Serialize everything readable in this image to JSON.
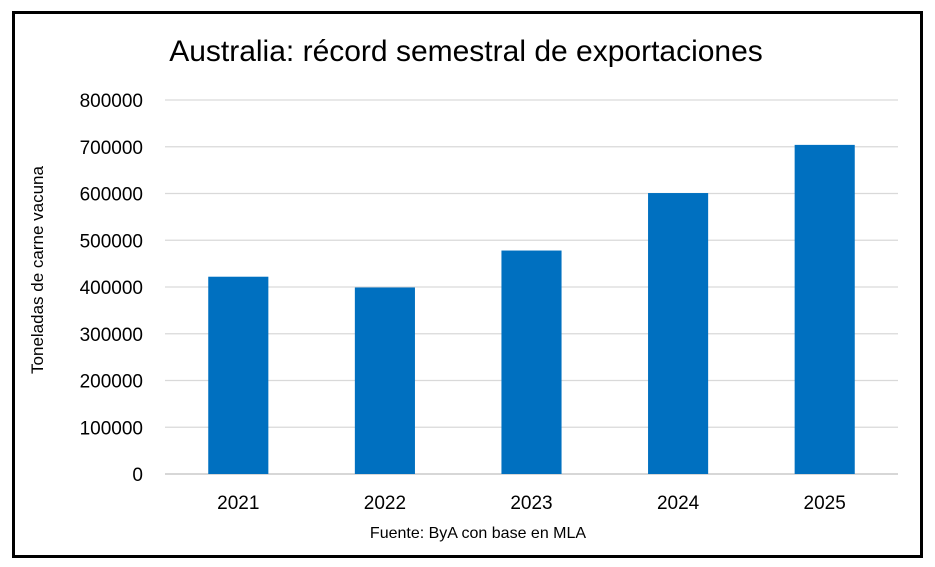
{
  "chart_data": {
    "type": "bar",
    "title": "Australia: récord semestral de exportaciones",
    "ylabel": "Toneladas de carne vacuna",
    "xlabel": "",
    "source": "Fuente: ByA con base en MLA",
    "categories": [
      "2021",
      "2022",
      "2023",
      "2024",
      "2025"
    ],
    "values": [
      422000,
      399000,
      478000,
      601000,
      704000
    ],
    "ylim": [
      0,
      800000
    ],
    "yticks": [
      "0",
      "100000",
      "200000",
      "300000",
      "400000",
      "500000",
      "600000",
      "700000",
      "800000"
    ],
    "grid": true,
    "legend": "none",
    "bar_color": "#0070C0",
    "grid_color": "#D9D9D9"
  }
}
